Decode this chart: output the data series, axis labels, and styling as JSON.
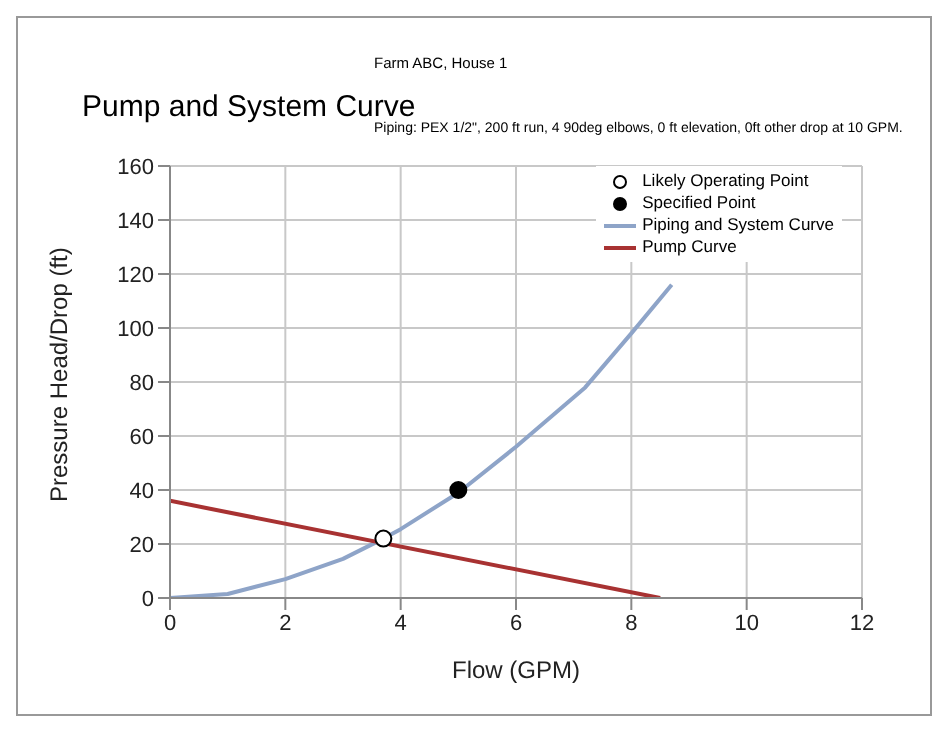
{
  "chart_data": {
    "type": "line",
    "title": "Pump and System Curve",
    "subtitle": "Farm ABC, House 1",
    "annotations": [
      "Piping: PEX 1/2\", 200 ft run, 4 90deg elbows, 0 ft elevation, 0ft other drop at 10 GPM."
    ],
    "xlabel": "Flow (GPM)",
    "ylabel": "Pressure Head/Drop (ft)",
    "xlim": [
      0,
      12
    ],
    "xticks": [
      0,
      2,
      4,
      6,
      8,
      10,
      12
    ],
    "ylim": [
      0,
      160
    ],
    "yticks": [
      0,
      20,
      40,
      60,
      80,
      100,
      120,
      140,
      160
    ],
    "grid": true,
    "legend": "top right",
    "series": [
      {
        "name": "Likely Operating Point",
        "type": "scatter",
        "marker": "circle",
        "color": "#ffffff",
        "x": [
          3.7
        ],
        "values": [
          22
        ]
      },
      {
        "name": "Specified Point",
        "type": "scatter",
        "marker": "circle",
        "color": "#000000",
        "x": [
          5
        ],
        "values": [
          40
        ]
      },
      {
        "name": "Piping and System Curve",
        "marker": "none",
        "color": "#8ea4c8",
        "x": [
          0,
          1,
          2,
          3,
          3.7,
          4,
          5,
          6,
          7.2,
          8,
          8.7
        ],
        "values": [
          0,
          1.5,
          7,
          14.5,
          22,
          25.5,
          39,
          56,
          78,
          98,
          116
        ]
      },
      {
        "name": "Pump Curve",
        "marker": "none",
        "color": "#a83232",
        "x": [
          0,
          8.5
        ],
        "values": [
          36,
          0
        ]
      }
    ]
  }
}
